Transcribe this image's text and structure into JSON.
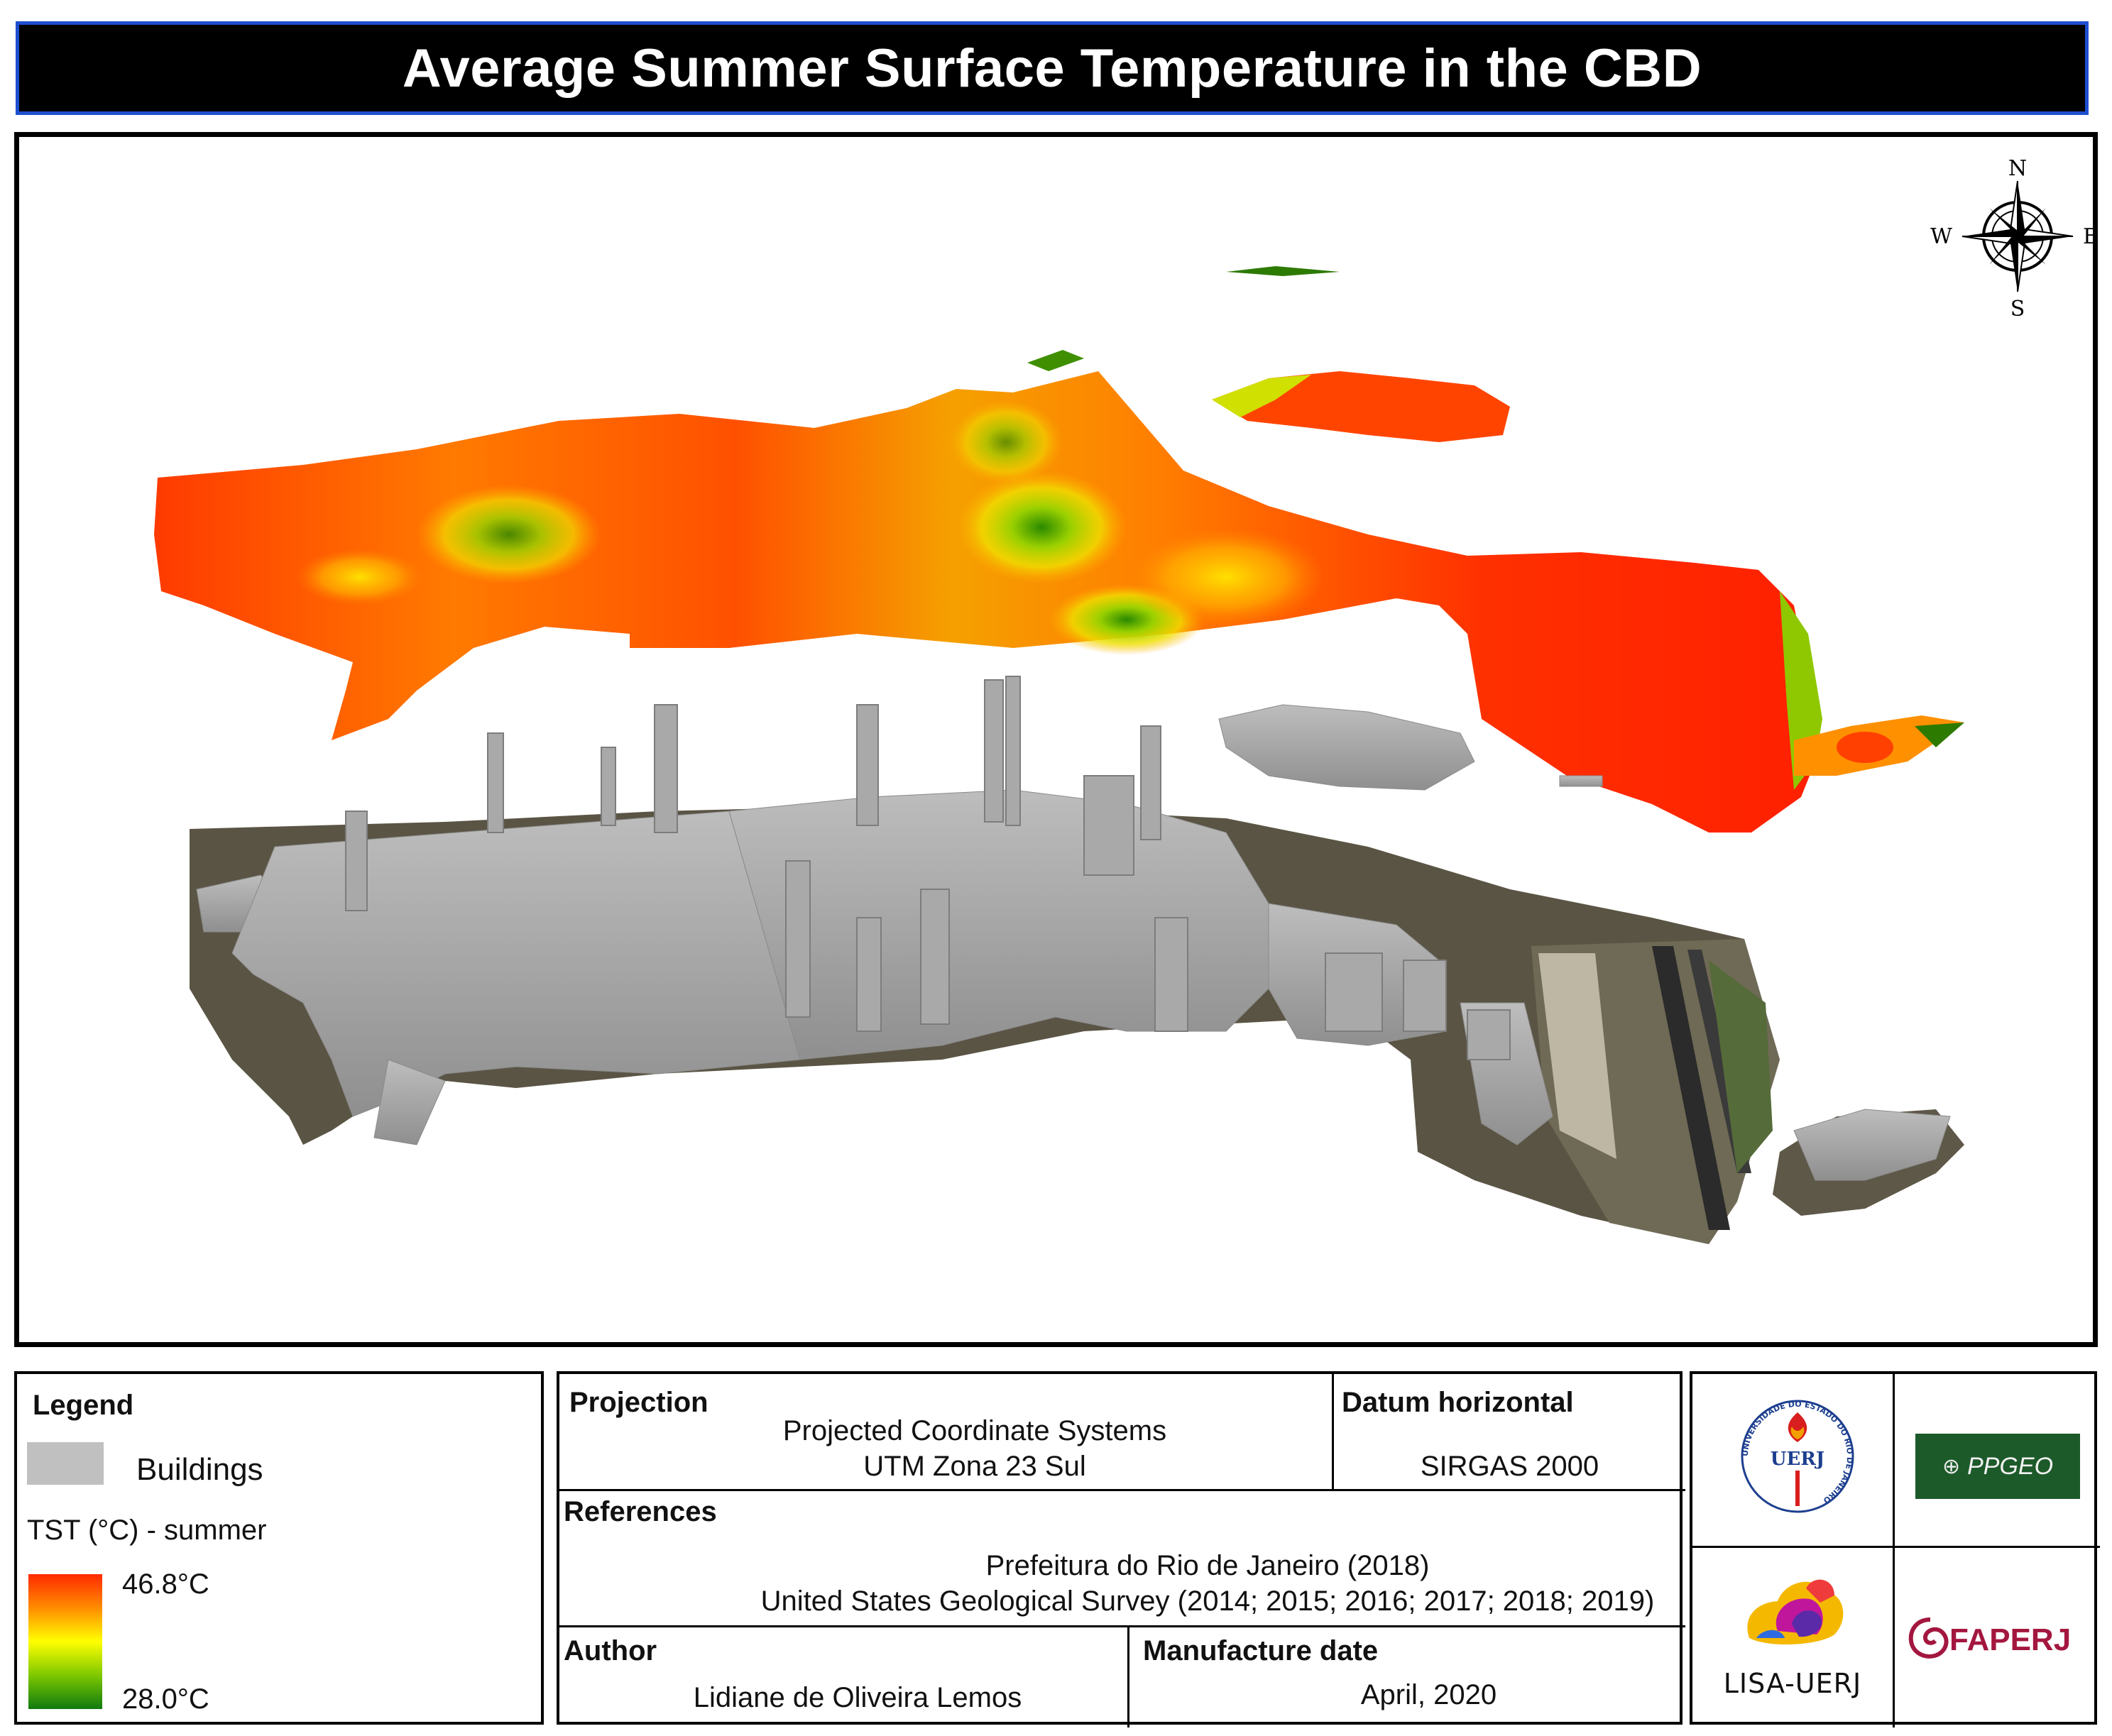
{
  "title": "Average Summer Surface Temperature in the CBD",
  "compass": {
    "n": "N",
    "s": "S",
    "e": "E",
    "w": "W"
  },
  "legend": {
    "heading": "Legend",
    "buildings_label": "Buildings",
    "buildings_color": "#c0c0c0",
    "tst_label": "TST (°C) - summer",
    "max_label": "46.8°C",
    "min_label": "28.0°C",
    "ramp_colors": [
      "#ff2a00",
      "#ff8c00",
      "#ffff00",
      "#7ec800",
      "#0f7a0f"
    ]
  },
  "info": {
    "projection_heading": "Projection",
    "projection_line1": "Projected Coordinate Systems",
    "projection_line2": "UTM Zona 23 Sul",
    "datum_heading": "Datum horizontal",
    "datum_value": "SIRGAS 2000",
    "references_heading": "References",
    "reference1": "Prefeitura do Rio de Janeiro (2018)",
    "reference2": "United States Geological Survey (2014; 2015; 2016; 2017; 2018; 2019)",
    "author_heading": "Author",
    "author_value": "Lidiane de Oliveira Lemos",
    "date_heading": "Manufacture date",
    "date_value": "April, 2020"
  },
  "logos": {
    "uerj": "UERJ",
    "uerj_ring": "UNIVERSIDADE DO ESTADO DO RIO DE JANEIRO",
    "ppgeo": "PPGEO",
    "lisa": "LISA-UERJ",
    "faperj": "FAPERJ"
  }
}
